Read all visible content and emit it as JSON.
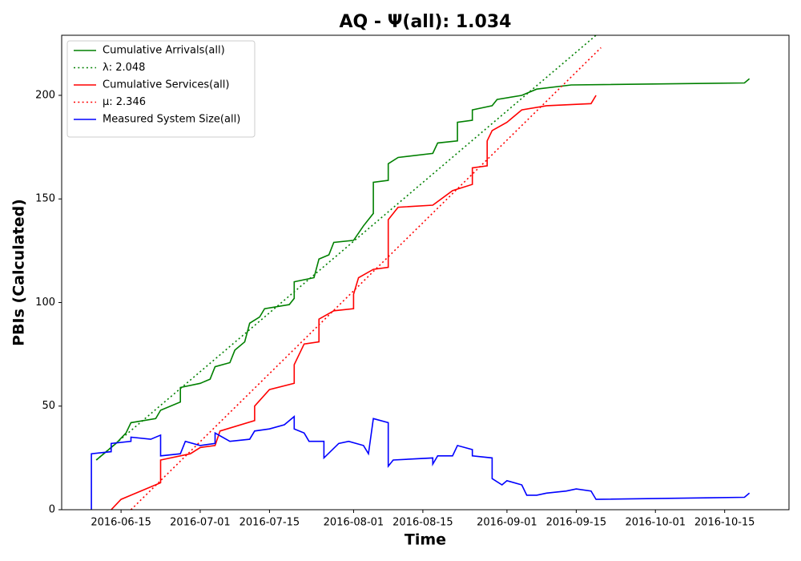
{
  "chart_data": {
    "type": "line",
    "title": "AQ -  Ψ(all): 1.034",
    "x_label": "Time",
    "y_label": "PBIs (Calculated)",
    "xlim": [
      "2016-06-03",
      "2016-10-28"
    ],
    "xticks": [
      "2016-06-15",
      "2016-07-01",
      "2016-07-15",
      "2016-08-01",
      "2016-08-15",
      "2016-09-01",
      "2016-09-15",
      "2016-10-01",
      "2016-10-15"
    ],
    "ylim": [
      0,
      229
    ],
    "yticks": [
      0,
      50,
      100,
      150,
      200
    ],
    "legend": "upper left",
    "series": [
      {
        "name": "Cumulative Arrivals(all)",
        "color": "#008000",
        "linestyle": "solid",
        "x": [
          "2016-06-10",
          "2016-06-14",
          "2016-06-16",
          "2016-06-17",
          "2016-06-22",
          "2016-06-23",
          "2016-06-27",
          "2016-06-27",
          "2016-07-01",
          "2016-07-03",
          "2016-07-04",
          "2016-07-07",
          "2016-07-08",
          "2016-07-10",
          "2016-07-11",
          "2016-07-13",
          "2016-07-14",
          "2016-07-19",
          "2016-07-20",
          "2016-07-20",
          "2016-07-24",
          "2016-07-25",
          "2016-07-27",
          "2016-07-28",
          "2016-08-01",
          "2016-08-03",
          "2016-08-05",
          "2016-08-05",
          "2016-08-08",
          "2016-08-08",
          "2016-08-10",
          "2016-08-17",
          "2016-08-18",
          "2016-08-22",
          "2016-08-22",
          "2016-08-25",
          "2016-08-25",
          "2016-08-29",
          "2016-08-30",
          "2016-09-04",
          "2016-09-07",
          "2016-09-14",
          "2016-10-19",
          "2016-10-20"
        ],
        "values": [
          24,
          32,
          37,
          42,
          44,
          48,
          52,
          59,
          61,
          63,
          69,
          71,
          77,
          81,
          90,
          93,
          97,
          99,
          102,
          110,
          112,
          121,
          123,
          129,
          130,
          137,
          143,
          158,
          159,
          167,
          170,
          172,
          177,
          178,
          187,
          188,
          193,
          195,
          198,
          200,
          203,
          205,
          206,
          208
        ]
      },
      {
        "name": "λ: 2.048",
        "color": "#008000",
        "linestyle": "dotted",
        "x": [
          "2016-06-10",
          "2016-09-19"
        ],
        "values": [
          24,
          229
        ]
      },
      {
        "name": "Cumulative Services(all)",
        "color": "#ff0000",
        "linestyle": "solid",
        "x": [
          "2016-06-13",
          "2016-06-15",
          "2016-06-17",
          "2016-06-20",
          "2016-06-23",
          "2016-06-23",
          "2016-06-29",
          "2016-07-01",
          "2016-07-04",
          "2016-07-05",
          "2016-07-12",
          "2016-07-12",
          "2016-07-15",
          "2016-07-20",
          "2016-07-20",
          "2016-07-22",
          "2016-07-25",
          "2016-07-25",
          "2016-07-28",
          "2016-08-01",
          "2016-08-01",
          "2016-08-02",
          "2016-08-05",
          "2016-08-08",
          "2016-08-08",
          "2016-08-10",
          "2016-08-17",
          "2016-08-21",
          "2016-08-25",
          "2016-08-25",
          "2016-08-28",
          "2016-08-28",
          "2016-08-29",
          "2016-09-01",
          "2016-09-04",
          "2016-09-09",
          "2016-09-18",
          "2016-09-19"
        ],
        "values": [
          0,
          5,
          7,
          10,
          13,
          24,
          27,
          30,
          31,
          38,
          43,
          50,
          58,
          61,
          70,
          80,
          81,
          92,
          96,
          97,
          104,
          112,
          116,
          117,
          140,
          146,
          147,
          154,
          157,
          165,
          166,
          178,
          183,
          187,
          193,
          195,
          196,
          200
        ]
      },
      {
        "name": "μ: 2.346",
        "color": "#ff0000",
        "linestyle": "dotted",
        "x": [
          "2016-06-17",
          "2016-09-20"
        ],
        "values": [
          0,
          223
        ]
      },
      {
        "name": "Measured System Size(all)",
        "color": "#0000ff",
        "linestyle": "solid",
        "x": [
          "2016-06-09",
          "2016-06-09",
          "2016-06-13",
          "2016-06-13",
          "2016-06-17",
          "2016-06-17",
          "2016-06-21",
          "2016-06-23",
          "2016-06-23",
          "2016-06-27",
          "2016-06-28",
          "2016-07-01",
          "2016-07-04",
          "2016-07-04",
          "2016-07-07",
          "2016-07-11",
          "2016-07-12",
          "2016-07-15",
          "2016-07-18",
          "2016-07-20",
          "2016-07-20",
          "2016-07-22",
          "2016-07-23",
          "2016-07-26",
          "2016-07-26",
          "2016-07-29",
          "2016-07-31",
          "2016-08-03",
          "2016-08-04",
          "2016-08-05",
          "2016-08-08",
          "2016-08-08",
          "2016-08-09",
          "2016-08-17",
          "2016-08-17",
          "2016-08-18",
          "2016-08-21",
          "2016-08-22",
          "2016-08-25",
          "2016-08-25",
          "2016-08-29",
          "2016-08-29",
          "2016-08-31",
          "2016-09-01",
          "2016-09-04",
          "2016-09-05",
          "2016-09-07",
          "2016-09-09",
          "2016-09-13",
          "2016-09-15",
          "2016-09-18",
          "2016-09-19",
          "2016-10-19",
          "2016-10-20"
        ],
        "values": [
          0,
          27,
          28,
          32,
          33,
          35,
          34,
          36,
          26,
          27,
          33,
          31,
          32,
          37,
          33,
          34,
          38,
          39,
          41,
          45,
          39,
          37,
          33,
          33,
          25,
          32,
          33,
          31,
          27,
          44,
          42,
          21,
          24,
          25,
          22,
          26,
          26,
          31,
          29,
          26,
          25,
          15,
          12,
          14,
          12,
          7,
          7,
          8,
          9,
          10,
          9,
          5,
          6,
          8
        ]
      }
    ]
  }
}
